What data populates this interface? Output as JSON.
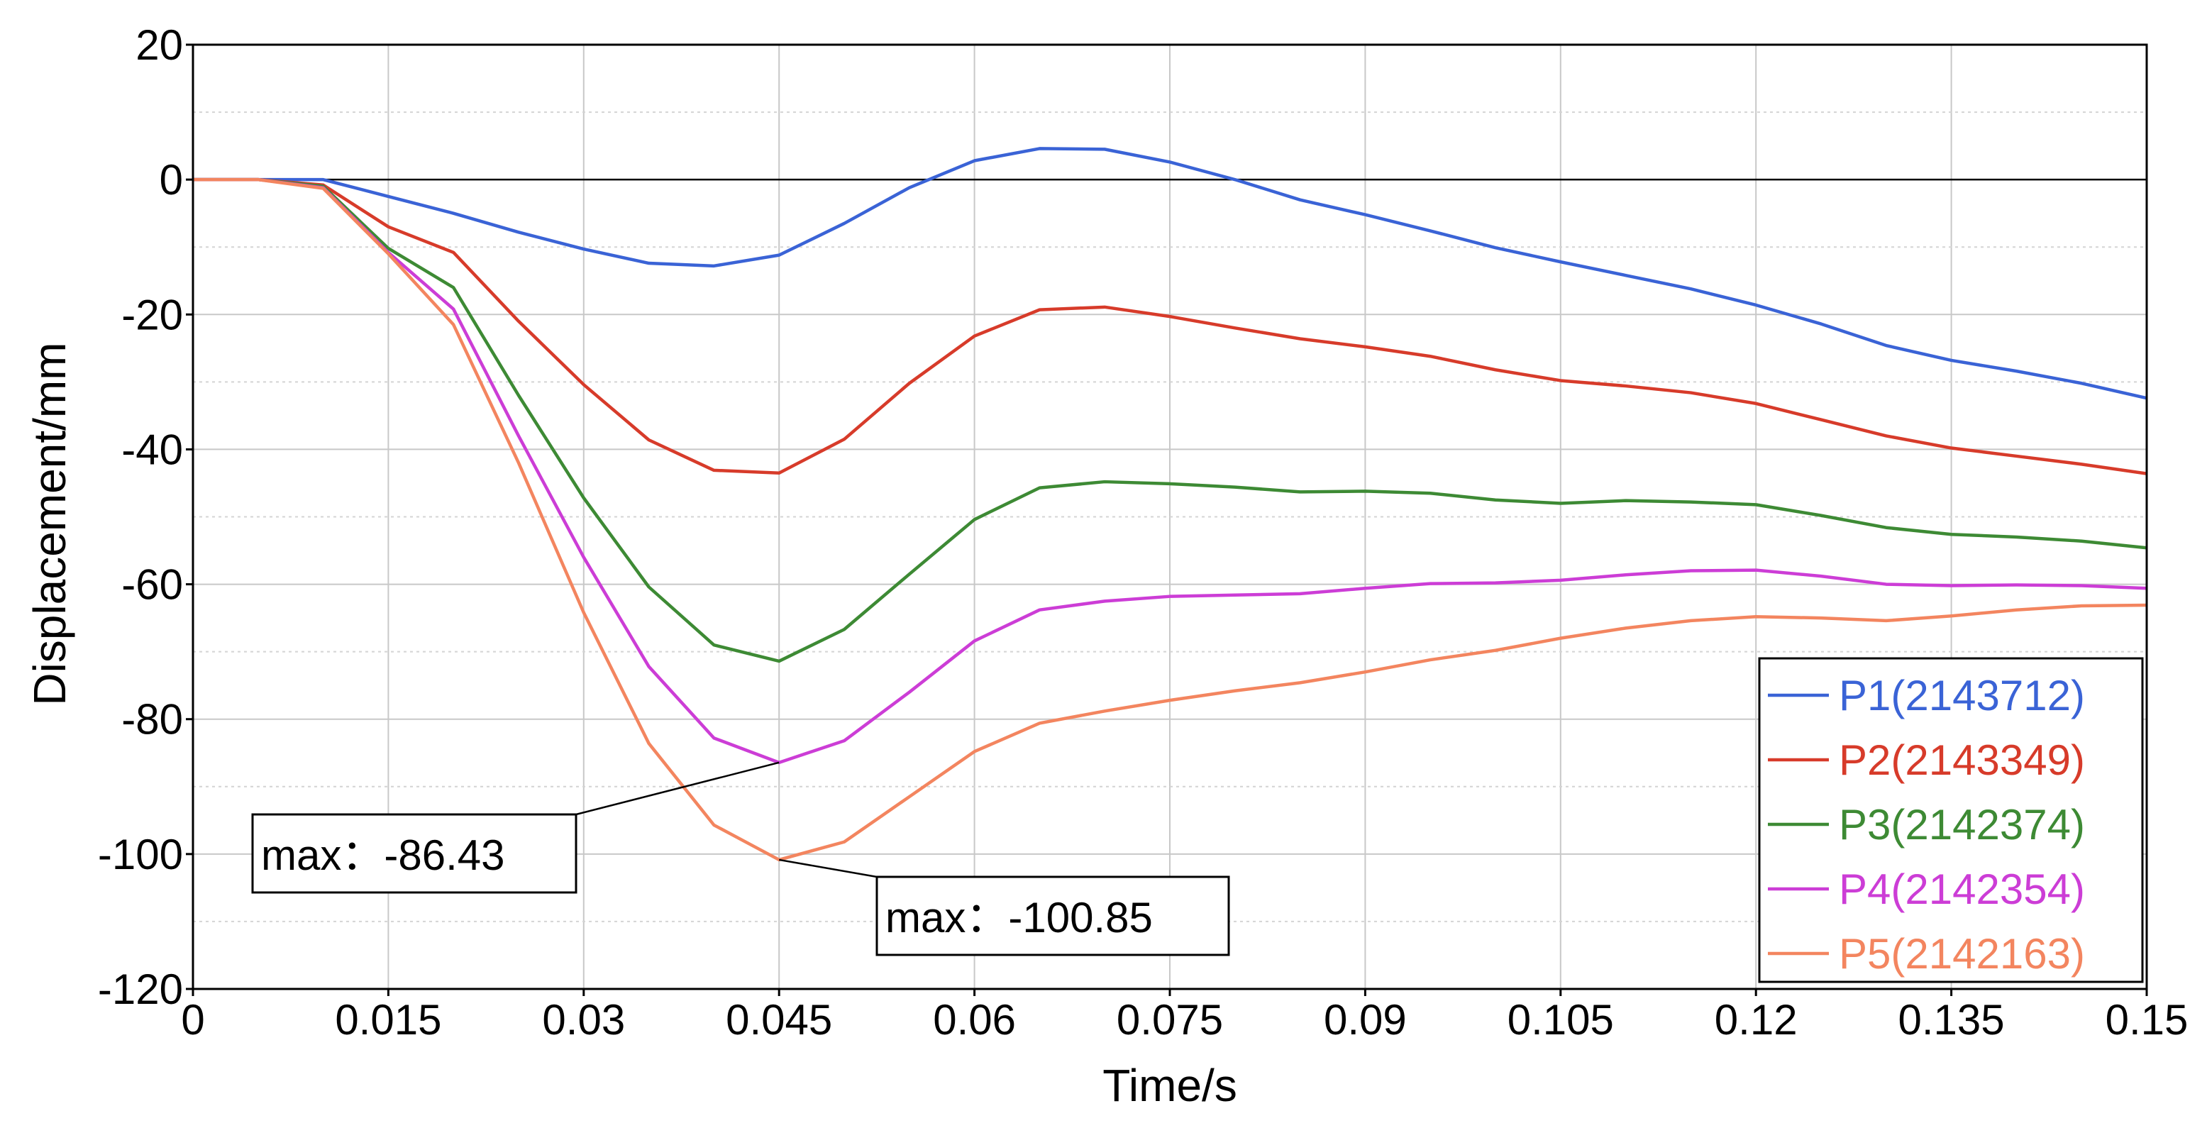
{
  "chart_data": {
    "type": "line",
    "xlabel": "Time/s",
    "ylabel": "Displacement/mm",
    "xlim": [
      0,
      0.15
    ],
    "ylim": [
      -120,
      20
    ],
    "xticks": [
      0,
      0.015,
      0.03,
      0.045,
      0.06,
      0.075,
      0.09,
      0.105,
      0.12,
      0.135,
      0.15
    ],
    "xtick_labels": [
      "0",
      "0.015",
      "0.03",
      "0.045",
      "0.06",
      "0.075",
      "0.09",
      "0.105",
      "0.12",
      "0.135",
      "0.15"
    ],
    "yticks": [
      20,
      0,
      -20,
      -40,
      -60,
      -80,
      -100,
      -120
    ],
    "ytick_labels": [
      "20",
      "0",
      "-20",
      "-40",
      "-60",
      "-80",
      "-100",
      "-120"
    ],
    "grid": true,
    "legend_position": "bottom-right",
    "x": [
      0,
      0.005,
      0.01,
      0.015,
      0.02,
      0.025,
      0.03,
      0.035,
      0.04,
      0.045,
      0.05,
      0.055,
      0.06,
      0.065,
      0.07,
      0.075,
      0.08,
      0.085,
      0.09,
      0.095,
      0.1,
      0.105,
      0.11,
      0.115,
      0.12,
      0.125,
      0.13,
      0.135,
      0.14,
      0.145,
      0.15
    ],
    "series": [
      {
        "name": "P1(2143712)",
        "color": "#3a63d6",
        "values": [
          0,
          0,
          0,
          -2.5,
          -5,
          -7.8,
          -10.3,
          -12.4,
          -12.8,
          -11.2,
          -6.5,
          -1.2,
          2.8,
          4.6,
          4.5,
          2.6,
          0,
          -3,
          -5.2,
          -7.6,
          -10.1,
          -12.2,
          -14.2,
          -16.2,
          -18.6,
          -21.4,
          -24.6,
          -26.8,
          -28.4,
          -30.2,
          -32.4
        ]
      },
      {
        "name": "P2(2143349)",
        "color": "#d73b2a",
        "values": [
          0,
          0,
          -0.8,
          -7,
          -10.8,
          -21,
          -30.4,
          -38.6,
          -43.1,
          -43.5,
          -38.5,
          -30.2,
          -23.2,
          -19.3,
          -18.9,
          -20.3,
          -22,
          -23.6,
          -24.8,
          -26.2,
          -28.2,
          -29.8,
          -30.6,
          -31.6,
          -33.2,
          -35.6,
          -38,
          -39.8,
          -41,
          -42.2,
          -43.6
        ]
      },
      {
        "name": "P3(2142374)",
        "color": "#3d8a34",
        "values": [
          0,
          0,
          -1,
          -10.2,
          -16,
          -32,
          -47.2,
          -60.4,
          -69,
          -71.4,
          -66.7,
          -58.5,
          -50.4,
          -45.7,
          -44.8,
          -45.1,
          -45.6,
          -46.3,
          -46.2,
          -46.5,
          -47.5,
          -48,
          -47.6,
          -47.8,
          -48.2,
          -49.8,
          -51.6,
          -52.6,
          -53,
          -53.6,
          -54.6
        ]
      },
      {
        "name": "P4(2142354)",
        "color": "#cc3dd6",
        "values": [
          0,
          0,
          -1.2,
          -10.8,
          -19.2,
          -38,
          -56,
          -72.2,
          -82.8,
          -86.43,
          -83.2,
          -76,
          -68.4,
          -63.8,
          -62.5,
          -61.8,
          -61.6,
          -61.4,
          -60.6,
          -59.9,
          -59.8,
          -59.4,
          -58.6,
          -58,
          -57.9,
          -58.8,
          -60,
          -60.2,
          -60.1,
          -60.2,
          -60.6
        ]
      },
      {
        "name": "P5(2142163)",
        "color": "#f3855f",
        "values": [
          0,
          0,
          -1.3,
          -11,
          -21.5,
          -42,
          -64.2,
          -83.6,
          -95.7,
          -100.85,
          -98.2,
          -91.5,
          -84.8,
          -80.6,
          -78.8,
          -77.2,
          -75.8,
          -74.6,
          -73,
          -71.2,
          -69.8,
          -68,
          -66.5,
          -65.4,
          -64.8,
          -65,
          -65.4,
          -64.7,
          -63.8,
          -63.2,
          -63.1
        ]
      }
    ],
    "annotations": [
      {
        "text": "max：-86.43",
        "x": 0.045,
        "y": -86.43
      },
      {
        "text": "max：-100.85",
        "x": 0.045,
        "y": -100.85
      }
    ]
  }
}
